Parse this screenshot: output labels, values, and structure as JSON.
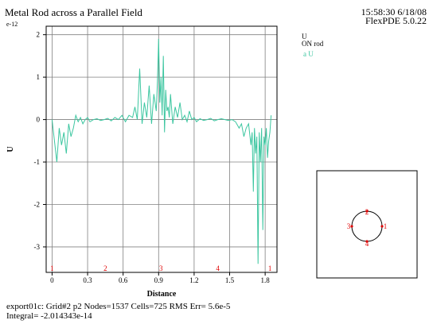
{
  "header": {
    "title": "Metal Rod across a Parallel Field",
    "scale": "e-12",
    "time": "15:58:30 6/18/08",
    "version": "FlexPDE 5.0.22"
  },
  "legend": {
    "variable": "U",
    "subtitle": "ON rod",
    "entry_marker": "a",
    "entry_label": "U"
  },
  "footer": {
    "line1": "export01c:  Grid#2  p2  Nodes=1537 Cells=725 RMS Err= 5.6e-5",
    "line2": "Integral= -2.014343e-14"
  },
  "colors": {
    "series": "#3cc6a0",
    "markers": "#e00000",
    "grid": "#808080"
  },
  "chart_data": {
    "type": "line",
    "xlabel": "Distance",
    "ylabel": "U",
    "xlim": [
      -0.05,
      1.9
    ],
    "ylim": [
      -3.6,
      2.2
    ],
    "xticks": [
      0,
      0.3,
      0.6,
      0.9,
      1.2,
      1.5,
      1.8
    ],
    "xtick_labels": [
      "0",
      "0.3",
      "0.6",
      "0.9",
      "1.2",
      "1.5",
      "1.8"
    ],
    "yticks": [
      2,
      1,
      0,
      -1,
      -2,
      -3
    ],
    "ytick_labels": [
      "2",
      "1",
      "0",
      "-1",
      "-2",
      "-3"
    ],
    "grid": true,
    "path_markers": [
      {
        "label": "1",
        "x": 0.0
      },
      {
        "label": "2",
        "x": 0.45
      },
      {
        "label": "3",
        "x": 0.92
      },
      {
        "label": "4",
        "x": 1.4
      },
      {
        "label": "1",
        "x": 1.84
      }
    ],
    "series": [
      {
        "values_x": [
          0.0,
          0.02,
          0.04,
          0.06,
          0.08,
          0.1,
          0.12,
          0.14,
          0.16,
          0.18,
          0.2,
          0.22,
          0.24,
          0.26,
          0.28,
          0.3,
          0.32,
          0.35,
          0.38,
          0.41,
          0.44,
          0.47,
          0.5,
          0.53,
          0.56,
          0.59,
          0.62,
          0.65,
          0.68,
          0.7,
          0.72,
          0.74,
          0.76,
          0.78,
          0.8,
          0.82,
          0.84,
          0.86,
          0.88,
          0.89,
          0.9,
          0.91,
          0.92,
          0.93,
          0.94,
          0.95,
          0.96,
          0.97,
          0.98,
          0.99,
          1.0,
          1.02,
          1.04,
          1.06,
          1.08,
          1.1,
          1.12,
          1.14,
          1.16,
          1.18,
          1.2,
          1.22,
          1.25,
          1.28,
          1.31,
          1.34,
          1.37,
          1.4,
          1.43,
          1.46,
          1.49,
          1.52,
          1.55,
          1.58,
          1.6,
          1.62,
          1.64,
          1.66,
          1.68,
          1.69,
          1.7,
          1.71,
          1.72,
          1.73,
          1.74,
          1.75,
          1.76,
          1.77,
          1.78,
          1.79,
          1.8,
          1.81,
          1.82,
          1.83,
          1.84,
          1.85
        ],
        "values_y": [
          0.0,
          -0.5,
          -1.0,
          -0.2,
          -0.6,
          -0.3,
          -0.8,
          -0.1,
          -0.4,
          -0.2,
          0.1,
          -0.05,
          0.05,
          -0.1,
          0.0,
          0.05,
          -0.05,
          0.0,
          0.02,
          -0.02,
          0.0,
          0.03,
          -0.03,
          0.05,
          0.0,
          0.1,
          -0.05,
          0.1,
          0.05,
          0.3,
          0.0,
          1.2,
          -0.1,
          0.4,
          0.05,
          0.8,
          -0.1,
          0.6,
          0.2,
          0.9,
          1.9,
          0.4,
          1.0,
          0.1,
          1.5,
          -0.3,
          0.7,
          0.2,
          0.3,
          0.05,
          0.6,
          -0.1,
          0.3,
          0.05,
          0.4,
          0.0,
          0.1,
          -0.05,
          0.2,
          0.0,
          0.05,
          -0.05,
          0.02,
          -0.02,
          0.0,
          0.03,
          -0.03,
          0.0,
          0.02,
          0.0,
          -0.02,
          0.0,
          -0.05,
          -0.2,
          -0.1,
          -0.4,
          -0.2,
          -0.1,
          -0.6,
          -0.3,
          -1.7,
          -0.2,
          -0.8,
          -0.4,
          -3.4,
          -0.3,
          -1.0,
          -0.2,
          -2.6,
          -0.4,
          -0.6,
          -0.2,
          -0.9,
          -0.5,
          -0.3,
          0.1
        ]
      }
    ]
  },
  "mesh_inset": {
    "node_labels": [
      "2",
      "3",
      "4",
      "1"
    ]
  }
}
